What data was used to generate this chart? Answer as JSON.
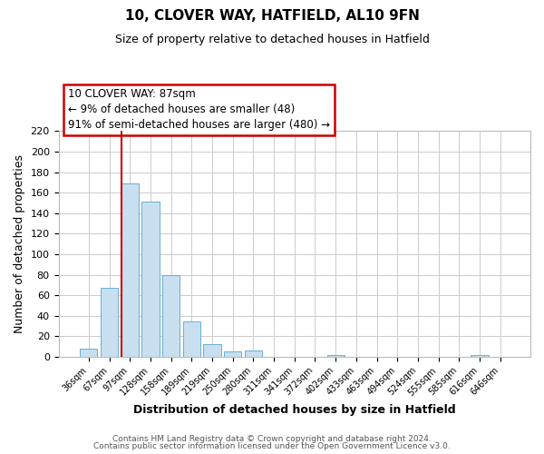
{
  "title": "10, CLOVER WAY, HATFIELD, AL10 9FN",
  "subtitle": "Size of property relative to detached houses in Hatfield",
  "xlabel": "Distribution of detached houses by size in Hatfield",
  "ylabel": "Number of detached properties",
  "categories": [
    "36sqm",
    "67sqm",
    "97sqm",
    "128sqm",
    "158sqm",
    "189sqm",
    "219sqm",
    "250sqm",
    "280sqm",
    "311sqm",
    "341sqm",
    "372sqm",
    "402sqm",
    "433sqm",
    "463sqm",
    "494sqm",
    "524sqm",
    "555sqm",
    "585sqm",
    "616sqm",
    "646sqm"
  ],
  "values": [
    8,
    67,
    169,
    151,
    80,
    34,
    12,
    5,
    6,
    0,
    0,
    0,
    2,
    0,
    0,
    0,
    0,
    0,
    0,
    2,
    0
  ],
  "bar_color": "#c8dff0",
  "bar_edge_color": "#6aafd4",
  "marker_line_x": "97sqm",
  "marker_line_color": "#cc0000",
  "ylim": [
    0,
    220
  ],
  "yticks": [
    0,
    20,
    40,
    60,
    80,
    100,
    120,
    140,
    160,
    180,
    200,
    220
  ],
  "annotation_title": "10 CLOVER WAY: 87sqm",
  "annotation_line1": "← 9% of detached houses are smaller (48)",
  "annotation_line2": "91% of semi-detached houses are larger (480) →",
  "annotation_box_color": "#ffffff",
  "annotation_box_edge": "#cc0000",
  "footer_line1": "Contains HM Land Registry data © Crown copyright and database right 2024.",
  "footer_line2": "Contains public sector information licensed under the Open Government Licence v3.0.",
  "background_color": "#ffffff",
  "grid_color": "#cccccc"
}
